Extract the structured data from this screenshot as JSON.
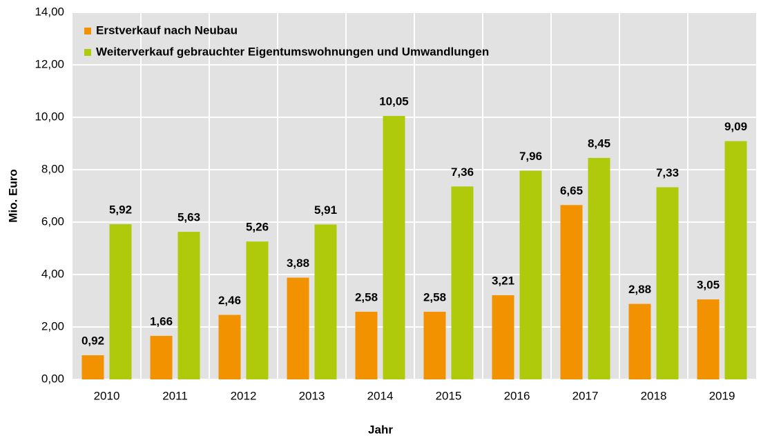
{
  "chart_data": {
    "type": "bar",
    "x_label": "Jahr",
    "y_label": "Mio. Euro",
    "categories": [
      "2010",
      "2011",
      "2012",
      "2013",
      "2014",
      "2015",
      "2016",
      "2017",
      "2018",
      "2019"
    ],
    "series": [
      {
        "name": "Erstverkauf nach Neubau",
        "color": "#f39200",
        "values": [
          0.92,
          1.66,
          2.46,
          3.88,
          2.58,
          2.58,
          3.21,
          6.65,
          2.88,
          3.05
        ],
        "value_labels": [
          "0,92",
          "1,66",
          "2,46",
          "3,88",
          "2,58",
          "2,58",
          "3,21",
          "6,65",
          "2,88",
          "3,05"
        ]
      },
      {
        "name": "Weiterverkauf gebrauchter Eigentumswohnungen und Umwandlungen",
        "color": "#afca0b",
        "values": [
          5.92,
          5.63,
          5.26,
          5.91,
          10.05,
          7.36,
          7.96,
          8.45,
          7.33,
          9.09
        ],
        "value_labels": [
          "5,92",
          "5,63",
          "5,26",
          "5,91",
          "10,05",
          "7,36",
          "7,96",
          "8,45",
          "7,33",
          "9,09"
        ]
      }
    ],
    "ylim": [
      0,
      14
    ],
    "yticks": [
      {
        "value": 0,
        "label": "0,00"
      },
      {
        "value": 2,
        "label": "2,00"
      },
      {
        "value": 4,
        "label": "4,00"
      },
      {
        "value": 6,
        "label": "6,00"
      },
      {
        "value": 8,
        "label": "8,00"
      },
      {
        "value": 10,
        "label": "10,00"
      },
      {
        "value": 12,
        "label": "12,00"
      },
      {
        "value": 14,
        "label": "14,00"
      }
    ],
    "grid": true,
    "legend": "upper left"
  }
}
